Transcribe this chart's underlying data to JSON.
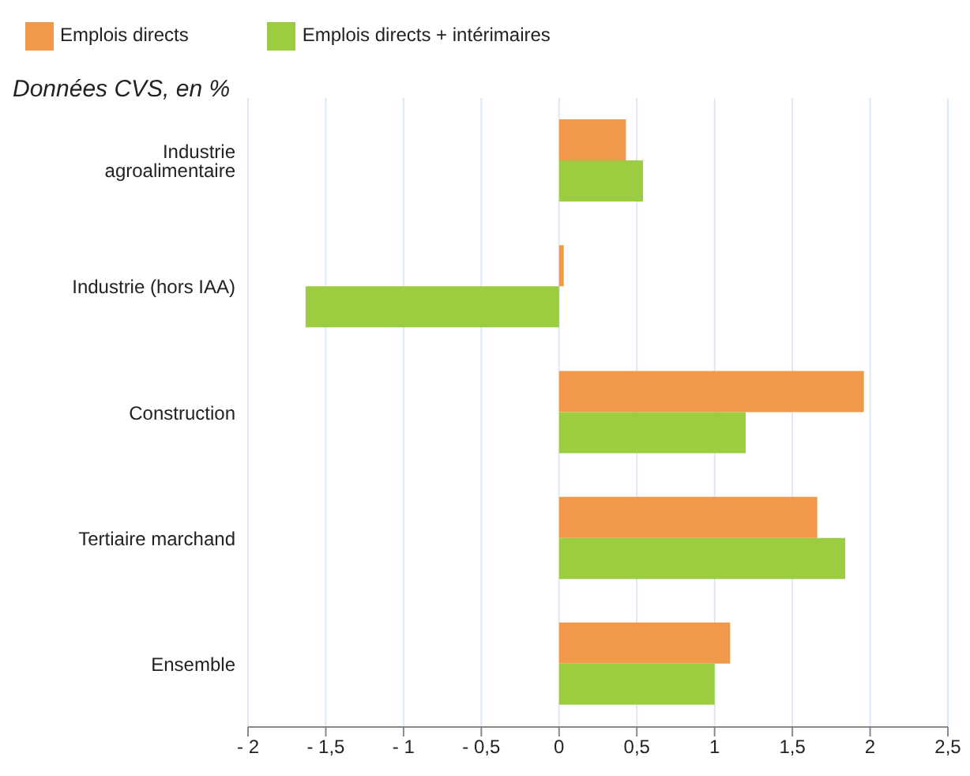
{
  "chart_data": {
    "type": "bar",
    "orientation": "horizontal",
    "subtitle": "Données CVS, en %",
    "categories": [
      "Industrie agroalimentaire",
      "Industrie (hors IAA)",
      "Construction",
      "Tertiaire marchand",
      "Ensemble"
    ],
    "series": [
      {
        "name": "Emplois directs",
        "color": "#f0994a",
        "values": [
          0.43,
          0.03,
          1.96,
          1.66,
          1.1
        ]
      },
      {
        "name": "Emplois directs + intérimaires",
        "color": "#9ccc3f",
        "values": [
          0.54,
          -1.63,
          1.2,
          1.84,
          1.0
        ]
      }
    ],
    "xlim": [
      -2,
      2.5
    ],
    "xticks": [
      {
        "value": -2,
        "label": "- 2"
      },
      {
        "value": -1.5,
        "label": "- 1,5"
      },
      {
        "value": -1,
        "label": "- 1"
      },
      {
        "value": -0.5,
        "label": "- 0,5"
      },
      {
        "value": 0,
        "label": "0"
      },
      {
        "value": 0.5,
        "label": "0,5"
      },
      {
        "value": 1,
        "label": "1"
      },
      {
        "value": 1.5,
        "label": "1,5"
      },
      {
        "value": 2,
        "label": "2"
      },
      {
        "value": 2.5,
        "label": "2,5"
      }
    ],
    "grid": "x",
    "legend": "top left"
  }
}
